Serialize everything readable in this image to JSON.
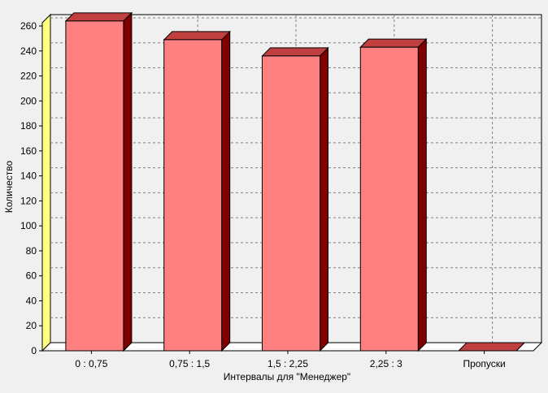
{
  "chart_data": {
    "type": "bar",
    "categories": [
      "0 : 0,75",
      "0,75 : 1,5",
      "1,5 : 2,25",
      "2,25 : 3",
      "Пропуски"
    ],
    "values": [
      264,
      249,
      236,
      243,
      0
    ],
    "xlabel": "Интервалы для \"Менеджер\"",
    "ylabel": "Количество",
    "ylim": [
      0,
      260
    ],
    "yticks": [
      0,
      20,
      40,
      60,
      80,
      100,
      120,
      140,
      160,
      180,
      200,
      220,
      240,
      260
    ],
    "grid": true,
    "legend": "none",
    "colors": {
      "bar_front": "#ff8080",
      "bar_top": "#c04040",
      "bar_side": "#800000",
      "wall_left": "#ffff80",
      "plot_bg": "#f0f0f0",
      "grid": "#808080"
    }
  }
}
